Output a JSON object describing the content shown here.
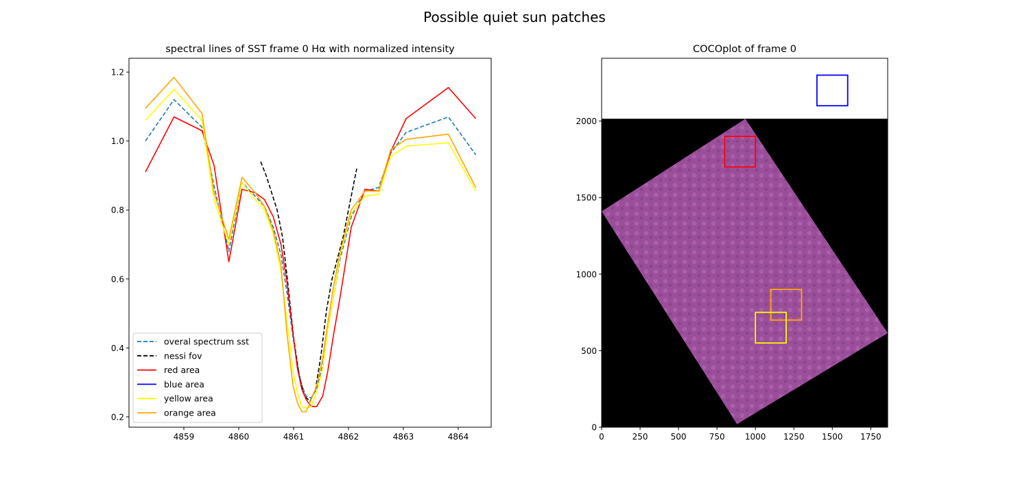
{
  "figure": {
    "suptitle": "Possible quiet sun patches"
  },
  "chart_data": [
    {
      "type": "line",
      "title": "spectral lines of SST frame 0 Hα with normalized intensity",
      "xlabel": "",
      "ylabel": "",
      "xlim": [
        4858.0,
        4864.6
      ],
      "ylim": [
        0.17,
        1.24
      ],
      "xticks": [
        4859,
        4860,
        4861,
        4862,
        4863,
        4864
      ],
      "yticks": [
        0.2,
        0.4,
        0.6,
        0.8,
        1.0,
        1.2
      ],
      "grid": false,
      "legend_position": "lower-left",
      "series": [
        {
          "name": "overal spectrum sst",
          "color": "#1f77b4",
          "dash": "dashed",
          "x": [
            4858.3,
            4858.82,
            4859.33,
            4859.55,
            4859.82,
            4860.06,
            4860.3,
            4860.47,
            4860.63,
            4860.77,
            4860.88,
            4860.99,
            4861.07,
            4861.15,
            4861.23,
            4861.32,
            4861.42,
            4861.53,
            4861.62,
            4861.73,
            4861.85,
            4862.05,
            4862.3,
            4862.55,
            4862.77,
            4863.05,
            4863.82,
            4864.32
          ],
          "y": [
            1.0,
            1.12,
            1.04,
            0.87,
            0.68,
            0.88,
            0.84,
            0.81,
            0.75,
            0.67,
            0.56,
            0.43,
            0.35,
            0.29,
            0.26,
            0.255,
            0.28,
            0.35,
            0.45,
            0.55,
            0.66,
            0.78,
            0.855,
            0.865,
            0.965,
            1.025,
            1.07,
            0.96
          ]
        },
        {
          "name": "nessi fov",
          "color": "#000000",
          "dash": "dashed",
          "x": [
            4860.4,
            4860.5,
            4860.6,
            4860.7,
            4860.8,
            4860.9,
            4861.0,
            4861.1,
            4861.2,
            4861.3,
            4861.4,
            4861.5,
            4861.6,
            4861.7,
            4861.8,
            4861.9,
            4862.0,
            4862.15
          ],
          "y": [
            0.94,
            0.9,
            0.85,
            0.8,
            0.72,
            0.58,
            0.43,
            0.32,
            0.26,
            0.245,
            0.28,
            0.38,
            0.51,
            0.6,
            0.66,
            0.72,
            0.8,
            0.92
          ]
        },
        {
          "name": "red area",
          "color": "#ff0000",
          "dash": "solid",
          "x": [
            4858.3,
            4858.82,
            4859.33,
            4859.55,
            4859.82,
            4860.06,
            4860.3,
            4860.47,
            4860.63,
            4860.77,
            4860.88,
            4860.99,
            4861.07,
            4861.15,
            4861.23,
            4861.32,
            4861.42,
            4861.53,
            4861.62,
            4861.73,
            4861.85,
            4862.05,
            4862.3,
            4862.55,
            4862.77,
            4863.05,
            4863.82,
            4864.32
          ],
          "y": [
            0.91,
            1.07,
            1.03,
            0.93,
            0.65,
            0.86,
            0.85,
            0.83,
            0.78,
            0.7,
            0.59,
            0.44,
            0.34,
            0.28,
            0.25,
            0.23,
            0.23,
            0.26,
            0.33,
            0.44,
            0.55,
            0.75,
            0.86,
            0.855,
            0.97,
            1.065,
            1.155,
            1.065
          ]
        },
        {
          "name": "blue area",
          "color": "#0000ff",
          "dash": "solid",
          "x": [],
          "y": []
        },
        {
          "name": "yellow area",
          "color": "#ffff00",
          "dash": "solid",
          "x": [
            4858.3,
            4858.82,
            4859.33,
            4859.55,
            4859.82,
            4860.06,
            4860.3,
            4860.47,
            4860.63,
            4860.77,
            4860.88,
            4860.99,
            4861.07,
            4861.15,
            4861.23,
            4861.32,
            4861.42,
            4861.53,
            4861.62,
            4861.73,
            4861.85,
            4862.05,
            4862.3,
            4862.55,
            4862.77,
            4863.05,
            4863.82,
            4864.32
          ],
          "y": [
            1.06,
            1.15,
            1.06,
            0.83,
            0.7,
            0.88,
            0.83,
            0.8,
            0.73,
            0.62,
            0.48,
            0.33,
            0.27,
            0.23,
            0.225,
            0.23,
            0.27,
            0.34,
            0.45,
            0.55,
            0.67,
            0.79,
            0.84,
            0.845,
            0.955,
            0.985,
            0.995,
            0.855
          ]
        },
        {
          "name": "orange area",
          "color": "#ffa500",
          "dash": "solid",
          "x": [
            4858.3,
            4858.82,
            4859.33,
            4859.55,
            4859.82,
            4860.06,
            4860.3,
            4860.47,
            4860.63,
            4860.77,
            4860.88,
            4860.99,
            4861.07,
            4861.15,
            4861.23,
            4861.32,
            4861.42,
            4861.53,
            4861.62,
            4861.73,
            4861.85,
            4862.05,
            4862.3,
            4862.55,
            4862.77,
            4863.05,
            4863.82,
            4864.32
          ],
          "y": [
            1.095,
            1.185,
            1.08,
            0.85,
            0.715,
            0.895,
            0.85,
            0.81,
            0.74,
            0.64,
            0.44,
            0.29,
            0.24,
            0.215,
            0.215,
            0.25,
            0.29,
            0.37,
            0.47,
            0.58,
            0.68,
            0.8,
            0.855,
            0.855,
            0.975,
            1.005,
            1.02,
            0.865
          ]
        }
      ]
    },
    {
      "type": "image",
      "title": "COCOplot of frame 0",
      "xlim": [
        0,
        1860
      ],
      "ylim": [
        0,
        2410
      ],
      "xticks": [
        0,
        250,
        500,
        750,
        1000,
        1250,
        1500,
        1750
      ],
      "yticks": [
        0,
        500,
        1000,
        1500,
        2000
      ],
      "background_region": {
        "x": [
          0,
          1860
        ],
        "y": [
          0,
          2015
        ],
        "color": "#000000"
      },
      "image_corners": [
        [
          935,
          2015
        ],
        [
          0,
          1410
        ],
        [
          880,
          20
        ],
        [
          1860,
          615
        ]
      ],
      "image_color": "#9b4f9b",
      "rectangles": [
        {
          "name": "red area",
          "color": "#ff0000",
          "x": [
            800,
            1000
          ],
          "y": [
            1700,
            1900
          ]
        },
        {
          "name": "blue area",
          "color": "#0000ff",
          "x": [
            1400,
            1600
          ],
          "y": [
            2100,
            2300
          ]
        },
        {
          "name": "orange area",
          "color": "#ffa500",
          "x": [
            1100,
            1300
          ],
          "y": [
            700,
            900
          ]
        },
        {
          "name": "yellow area",
          "color": "#ffff00",
          "x": [
            1000,
            1200
          ],
          "y": [
            550,
            750
          ]
        }
      ]
    }
  ]
}
